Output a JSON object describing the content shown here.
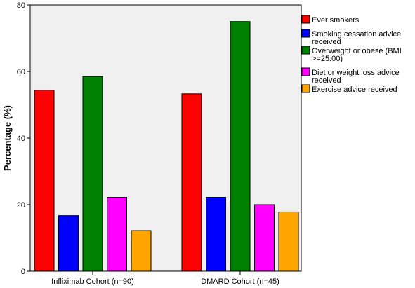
{
  "chart_data": {
    "type": "bar",
    "categories": [
      "Infliximab Cohort (n=90)",
      "DMARD Cohort (n=45)"
    ],
    "series": [
      {
        "name": "Ever smokers",
        "values": [
          54.4,
          53.3
        ],
        "color": "#ff0000"
      },
      {
        "name": "Smoking cessation advice received",
        "values": [
          16.7,
          22.2
        ],
        "color": "#0000ff"
      },
      {
        "name": "Overweight or obese (BMI >=25.00)",
        "values": [
          58.5,
          75.0
        ],
        "color": "#008000"
      },
      {
        "name": "Diet or weight loss advice received",
        "values": [
          22.2,
          20.0
        ],
        "color": "#ff00ff"
      },
      {
        "name": "Exercise advice received",
        "values": [
          12.2,
          17.8
        ],
        "color": "#ffa500"
      }
    ],
    "legend_lines": [
      [
        "Ever smokers"
      ],
      [
        "Smoking cessation advice",
        "received"
      ],
      [
        "Overweight or obese (BMI",
        ">=25.00)"
      ],
      [
        "Diet or weight loss advice",
        "received"
      ],
      [
        "Exercise advice received"
      ]
    ],
    "xlabel": "",
    "ylabel": "Percentage (%)",
    "ylim": [
      0,
      80
    ],
    "yticks": [
      0,
      20,
      40,
      60,
      80
    ],
    "legend_position": "right",
    "plot_background": "#f0f0f0",
    "grid": false
  }
}
